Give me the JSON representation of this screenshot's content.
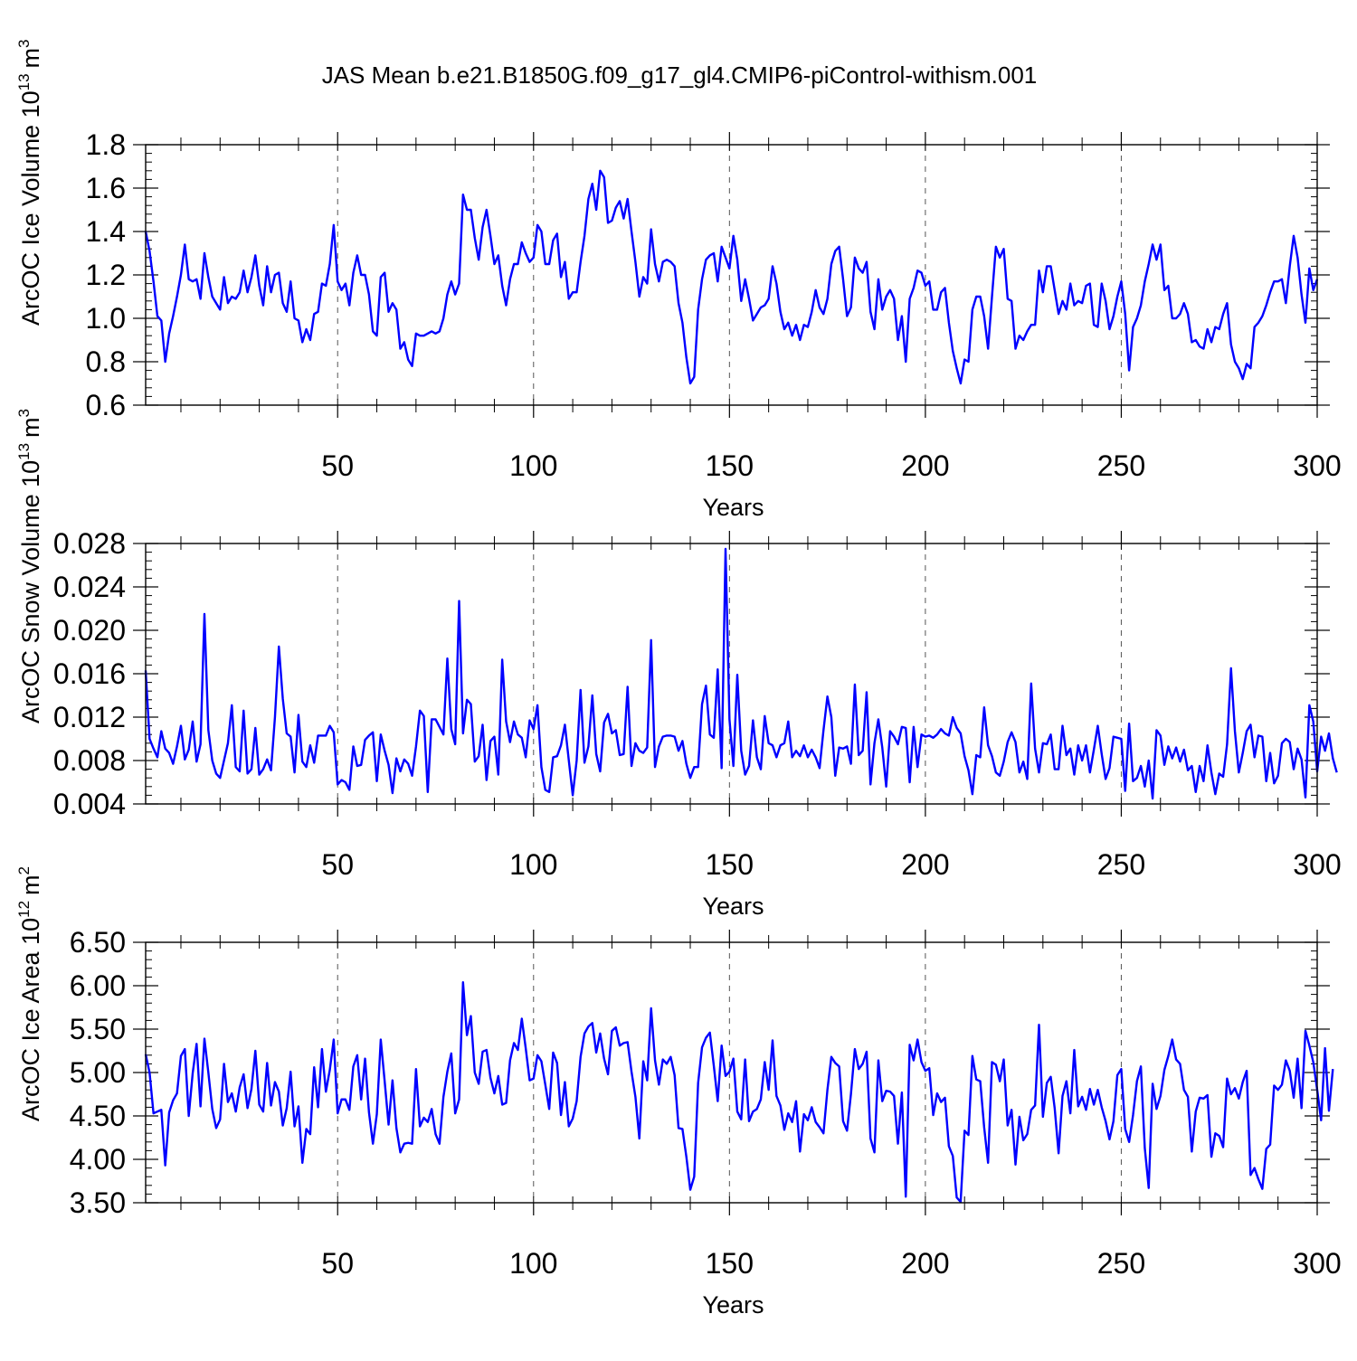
{
  "title": "JAS Mean b.e21.B1850G.f09_g17_gl4.CMIP6-piControl-withism.001",
  "line_color": "#0000ff",
  "chart_data": [
    {
      "type": "line",
      "xlabel": "Years",
      "ylabel": "ArcOC Ice Volume 10",
      "ylabel_sup": "13",
      "ylabel_unit": "m",
      "ylabel_unit_sup": "3",
      "xlim": [
        1,
        300
      ],
      "ylim": [
        0.6,
        1.8
      ],
      "x_ticks": [
        50,
        100,
        150,
        200,
        250,
        300
      ],
      "y_ticks": [
        0.6,
        0.8,
        1.0,
        1.2,
        1.4,
        1.6,
        1.8
      ],
      "y_tick_labels": [
        "0.6",
        "0.8",
        "1.0",
        "1.2",
        "1.4",
        "1.6",
        "1.8"
      ],
      "grid": "dashed vertical at 50-year ticks",
      "series": [
        {
          "values": [
            1.4,
            1.31,
            1.17,
            1.01,
            0.99,
            0.8,
            0.93,
            1.01,
            1.1,
            1.2,
            1.34,
            1.18,
            1.17,
            1.18,
            1.09,
            1.3,
            1.19,
            1.1,
            1.07,
            1.04,
            1.19,
            1.07,
            1.1,
            1.09,
            1.12,
            1.22,
            1.12,
            1.19,
            1.29,
            1.15,
            1.06,
            1.24,
            1.12,
            1.2,
            1.21,
            1.07,
            1.03,
            1.17,
            1.0,
            0.99,
            0.89,
            0.95,
            0.9,
            1.02,
            1.03,
            1.16,
            1.15,
            1.25,
            1.43,
            1.17,
            1.13,
            1.16,
            1.06,
            1.21,
            1.29,
            1.2,
            1.2,
            1.11,
            0.94,
            0.92,
            1.19,
            1.21,
            1.03,
            1.07,
            1.04,
            0.86,
            0.89,
            0.81,
            0.78,
            0.93,
            0.92,
            0.92,
            0.93,
            0.94,
            0.93,
            0.94,
            1.0,
            1.11,
            1.17,
            1.11,
            1.16,
            1.57,
            1.5,
            1.5,
            1.37,
            1.27,
            1.42,
            1.5,
            1.38,
            1.25,
            1.29,
            1.15,
            1.06,
            1.18,
            1.25,
            1.25,
            1.35,
            1.3,
            1.26,
            1.28,
            1.43,
            1.4,
            1.25,
            1.25,
            1.36,
            1.39,
            1.19,
            1.26,
            1.09,
            1.12,
            1.12,
            1.26,
            1.38,
            1.55,
            1.62,
            1.5,
            1.68,
            1.65,
            1.44,
            1.45,
            1.51,
            1.54,
            1.46,
            1.55,
            1.4,
            1.26,
            1.1,
            1.19,
            1.16,
            1.41,
            1.25,
            1.17,
            1.26,
            1.27,
            1.26,
            1.24,
            1.07,
            0.98,
            0.82,
            0.7,
            0.73,
            1.04,
            1.18,
            1.27,
            1.29,
            1.3,
            1.17,
            1.33,
            1.28,
            1.23,
            1.38,
            1.27,
            1.08,
            1.18,
            1.09,
            0.99,
            1.02,
            1.05,
            1.06,
            1.09,
            1.24,
            1.16,
            1.03,
            0.95,
            0.98,
            0.92,
            0.97,
            0.9,
            0.97,
            0.96,
            1.03,
            1.13,
            1.05,
            1.02,
            1.09,
            1.25,
            1.31,
            1.33,
            1.18,
            1.01,
            1.05,
            1.28,
            1.23,
            1.21,
            1.26,
            1.03,
            0.95,
            1.18,
            1.04,
            1.1,
            1.13,
            1.09,
            0.9,
            1.01,
            0.8,
            1.09,
            1.14,
            1.22,
            1.21,
            1.15,
            1.17,
            1.04,
            1.04,
            1.12,
            1.14,
            0.98,
            0.85,
            0.77,
            0.7,
            0.81,
            0.8,
            1.04,
            1.1,
            1.1,
            1.01,
            0.86,
            1.1,
            1.33,
            1.28,
            1.32,
            1.09,
            1.08,
            0.86,
            0.92,
            0.9,
            0.94,
            0.97,
            0.97,
            1.22,
            1.12,
            1.24,
            1.24,
            1.13,
            1.02,
            1.08,
            1.04,
            1.16,
            1.06,
            1.08,
            1.07,
            1.15,
            1.16,
            0.97,
            0.96,
            1.16,
            1.08,
            0.95,
            1.01,
            1.1,
            1.17,
            1.02,
            0.76,
            0.96,
            1.0,
            1.06,
            1.17,
            1.25,
            1.34,
            1.27,
            1.34,
            1.13,
            1.15,
            1.0,
            1.0,
            1.02,
            1.07,
            1.02,
            0.89,
            0.9,
            0.87,
            0.86,
            0.95,
            0.89,
            0.96,
            0.95,
            1.02,
            1.07,
            0.88,
            0.8,
            0.77,
            0.72,
            0.79,
            0.77,
            0.96,
            0.98,
            1.01,
            1.06,
            1.12,
            1.17,
            1.17,
            1.18,
            1.07,
            1.24,
            1.38,
            1.28,
            1.11,
            0.98,
            1.23,
            1.13,
            1.18
          ]
        }
      ]
    },
    {
      "type": "line",
      "xlabel": "Years",
      "ylabel": "ArcOC Snow Volume 10",
      "ylabel_sup": "13",
      "ylabel_unit": "m",
      "ylabel_unit_sup": "3",
      "xlim": [
        1,
        300
      ],
      "ylim": [
        0.004,
        0.028
      ],
      "x_ticks": [
        50,
        100,
        150,
        200,
        250,
        300
      ],
      "y_ticks": [
        0.004,
        0.008,
        0.012,
        0.016,
        0.02,
        0.024,
        0.028
      ],
      "y_tick_labels": [
        "0.004",
        "0.008",
        "0.012",
        "0.016",
        "0.020",
        "0.024",
        "0.028"
      ],
      "grid": "dashed vertical at 50-year ticks",
      "series": [
        {
          "values": [
            0.0163,
            0.01,
            0.0091,
            0.0083,
            0.0107,
            0.0091,
            0.0087,
            0.0077,
            0.0093,
            0.0112,
            0.0081,
            0.009,
            0.0116,
            0.0079,
            0.0095,
            0.0215,
            0.0108,
            0.008,
            0.0068,
            0.0064,
            0.008,
            0.0096,
            0.0131,
            0.0074,
            0.007,
            0.0126,
            0.0068,
            0.0072,
            0.011,
            0.0067,
            0.0072,
            0.0081,
            0.0071,
            0.012,
            0.0185,
            0.0137,
            0.0105,
            0.0102,
            0.0069,
            0.0122,
            0.0079,
            0.0074,
            0.0094,
            0.0078,
            0.0103,
            0.0103,
            0.0103,
            0.0112,
            0.0106,
            0.0058,
            0.0062,
            0.006,
            0.0053,
            0.0093,
            0.0075,
            0.0076,
            0.0099,
            0.0103,
            0.0106,
            0.0061,
            0.0104,
            0.0089,
            0.0076,
            0.005,
            0.0082,
            0.007,
            0.0081,
            0.0077,
            0.0066,
            0.0093,
            0.0126,
            0.0121,
            0.0051,
            0.0118,
            0.0118,
            0.0111,
            0.0104,
            0.0174,
            0.0109,
            0.0095,
            0.0227,
            0.0105,
            0.0136,
            0.0132,
            0.0079,
            0.0084,
            0.0113,
            0.0062,
            0.0098,
            0.0102,
            0.0067,
            0.0173,
            0.0116,
            0.0097,
            0.0116,
            0.0104,
            0.0101,
            0.0083,
            0.0117,
            0.0109,
            0.0131,
            0.0074,
            0.0053,
            0.0051,
            0.0083,
            0.0084,
            0.0094,
            0.0113,
            0.008,
            0.0048,
            0.008,
            0.0145,
            0.0078,
            0.0093,
            0.014,
            0.0086,
            0.007,
            0.0115,
            0.0123,
            0.0105,
            0.0108,
            0.0085,
            0.0086,
            0.0148,
            0.0075,
            0.0096,
            0.0089,
            0.0087,
            0.0092,
            0.0191,
            0.0074,
            0.0093,
            0.0102,
            0.0103,
            0.0103,
            0.0102,
            0.0089,
            0.0098,
            0.0077,
            0.0064,
            0.0074,
            0.0074,
            0.0132,
            0.0149,
            0.0104,
            0.0101,
            0.0164,
            0.0073,
            0.0275,
            0.0118,
            0.0075,
            0.0159,
            0.0089,
            0.0067,
            0.0075,
            0.0117,
            0.0083,
            0.0072,
            0.0121,
            0.0096,
            0.0094,
            0.0083,
            0.0094,
            0.0096,
            0.0116,
            0.0083,
            0.0089,
            0.0084,
            0.0094,
            0.0083,
            0.009,
            0.0083,
            0.0073,
            0.0108,
            0.0139,
            0.012,
            0.0066,
            0.0092,
            0.0091,
            0.0093,
            0.0077,
            0.015,
            0.0085,
            0.0089,
            0.0143,
            0.0058,
            0.0096,
            0.0118,
            0.0092,
            0.0056,
            0.0107,
            0.0102,
            0.0095,
            0.0111,
            0.011,
            0.006,
            0.0111,
            0.0074,
            0.0104,
            0.0102,
            0.0103,
            0.0101,
            0.0104,
            0.0109,
            0.0105,
            0.0103,
            0.012,
            0.011,
            0.0105,
            0.0084,
            0.0071,
            0.0049,
            0.0085,
            0.0083,
            0.0129,
            0.0094,
            0.0084,
            0.0069,
            0.0066,
            0.0079,
            0.0097,
            0.0106,
            0.0097,
            0.0069,
            0.0079,
            0.0063,
            0.0151,
            0.0091,
            0.0069,
            0.0096,
            0.0095,
            0.0104,
            0.0072,
            0.0072,
            0.0112,
            0.0085,
            0.0091,
            0.0067,
            0.0094,
            0.008,
            0.0094,
            0.0069,
            0.009,
            0.0112,
            0.0086,
            0.0063,
            0.0073,
            0.0102,
            0.0101,
            0.01,
            0.0052,
            0.0114,
            0.0061,
            0.0064,
            0.0075,
            0.0056,
            0.008,
            0.0045,
            0.0108,
            0.0103,
            0.0076,
            0.0093,
            0.0082,
            0.0092,
            0.0079,
            0.009,
            0.0071,
            0.0075,
            0.0051,
            0.0075,
            0.0061,
            0.0094,
            0.0069,
            0.0049,
            0.0068,
            0.0065,
            0.0095,
            0.0165,
            0.0107,
            0.0069,
            0.0087,
            0.0107,
            0.0113,
            0.0083,
            0.0103,
            0.0102,
            0.0061,
            0.0087,
            0.0059,
            0.0066,
            0.0096,
            0.01,
            0.0097,
            0.0072,
            0.0091,
            0.0081,
            0.0046,
            0.0131,
            0.0116,
            0.007,
            0.0102,
            0.0089,
            0.0105,
            0.0082,
            0.0069
          ]
        }
      ]
    },
    {
      "type": "line",
      "xlabel": "Years",
      "ylabel": "ArcOC Ice Area 10",
      "ylabel_sup": "12",
      "ylabel_unit": "m",
      "ylabel_unit_sup": "2",
      "xlim": [
        1,
        300
      ],
      "ylim": [
        3.5,
        6.5
      ],
      "x_ticks": [
        50,
        100,
        150,
        200,
        250,
        300
      ],
      "y_ticks": [
        3.5,
        4.0,
        4.5,
        5.0,
        5.5,
        6.0,
        6.5
      ],
      "y_tick_labels": [
        "3.50",
        "4.00",
        "4.50",
        "5.00",
        "5.50",
        "6.00",
        "6.50"
      ],
      "grid": "dashed vertical at 50-year ticks",
      "series": [
        {
          "values": [
            5.21,
            5.0,
            4.53,
            4.55,
            4.57,
            3.93,
            4.54,
            4.68,
            4.76,
            5.19,
            5.27,
            4.5,
            4.99,
            5.33,
            4.61,
            5.39,
            5.0,
            4.58,
            4.36,
            4.46,
            5.1,
            4.66,
            4.76,
            4.55,
            4.83,
            4.98,
            4.59,
            4.81,
            5.25,
            4.63,
            4.55,
            5.11,
            4.62,
            4.89,
            4.78,
            4.39,
            4.59,
            5.01,
            4.38,
            4.61,
            3.96,
            4.35,
            4.29,
            5.06,
            4.6,
            5.27,
            4.78,
            5.03,
            5.38,
            4.53,
            4.69,
            4.69,
            4.57,
            5.07,
            5.2,
            4.69,
            5.16,
            4.54,
            4.18,
            4.52,
            5.38,
            4.9,
            4.4,
            4.91,
            4.36,
            4.08,
            4.18,
            4.19,
            4.18,
            5.04,
            4.38,
            4.48,
            4.43,
            4.58,
            4.29,
            4.18,
            4.72,
            5.01,
            5.22,
            4.53,
            4.69,
            6.04,
            5.43,
            5.65,
            5.0,
            4.87,
            5.24,
            5.26,
            4.94,
            4.76,
            4.96,
            4.63,
            4.65,
            5.14,
            5.34,
            5.26,
            5.62,
            5.28,
            4.91,
            4.93,
            5.2,
            5.13,
            4.86,
            4.58,
            5.23,
            5.11,
            4.51,
            4.89,
            4.38,
            4.47,
            4.67,
            5.18,
            5.45,
            5.53,
            5.57,
            5.23,
            5.45,
            5.16,
            4.98,
            5.48,
            5.52,
            5.31,
            5.34,
            5.35,
            5.01,
            4.72,
            4.24,
            5.13,
            4.91,
            5.74,
            5.14,
            4.86,
            5.15,
            5.1,
            5.18,
            4.97,
            4.36,
            4.35,
            4.03,
            3.65,
            3.8,
            4.88,
            5.29,
            5.4,
            5.46,
            5.08,
            4.67,
            5.31,
            4.96,
            5.01,
            5.16,
            4.55,
            4.46,
            5.15,
            4.44,
            4.55,
            4.58,
            4.69,
            5.12,
            4.8,
            5.37,
            4.73,
            4.62,
            4.34,
            4.53,
            4.43,
            4.67,
            4.09,
            4.52,
            4.45,
            4.6,
            4.43,
            4.37,
            4.3,
            4.8,
            5.18,
            5.11,
            5.07,
            4.44,
            4.33,
            4.75,
            5.27,
            5.04,
            5.1,
            5.24,
            4.24,
            4.08,
            5.14,
            4.67,
            4.79,
            4.78,
            4.73,
            4.18,
            4.77,
            3.57,
            5.32,
            5.14,
            5.38,
            5.12,
            5.02,
            5.05,
            4.51,
            4.76,
            4.66,
            4.71,
            4.15,
            4.04,
            3.56,
            3.51,
            4.33,
            4.28,
            5.19,
            4.92,
            4.9,
            4.37,
            3.96,
            5.12,
            5.09,
            4.9,
            5.15,
            4.39,
            4.57,
            3.94,
            4.49,
            4.22,
            4.29,
            4.57,
            4.62,
            5.55,
            4.49,
            4.88,
            4.95,
            4.59,
            4.07,
            4.73,
            4.9,
            4.53,
            5.26,
            4.61,
            4.72,
            4.57,
            4.81,
            4.63,
            4.8,
            4.6,
            4.44,
            4.23,
            4.44,
            4.97,
            5.04,
            4.35,
            4.2,
            4.51,
            4.9,
            5.07,
            4.13,
            3.67,
            4.87,
            4.58,
            4.73,
            5.03,
            5.19,
            5.38,
            5.15,
            5.1,
            4.8,
            4.72,
            4.09,
            4.55,
            4.71,
            4.7,
            4.74,
            4.03,
            4.3,
            4.27,
            4.14,
            4.93,
            4.75,
            4.82,
            4.7,
            4.89,
            5.02,
            3.82,
            3.9,
            3.77,
            3.66,
            4.12,
            4.17,
            4.85,
            4.8,
            4.86,
            5.14,
            5.02,
            4.71,
            5.16,
            4.59,
            5.48,
            5.31,
            5.12,
            4.8,
            4.45,
            5.28,
            4.56,
            5.04
          ]
        }
      ]
    }
  ]
}
